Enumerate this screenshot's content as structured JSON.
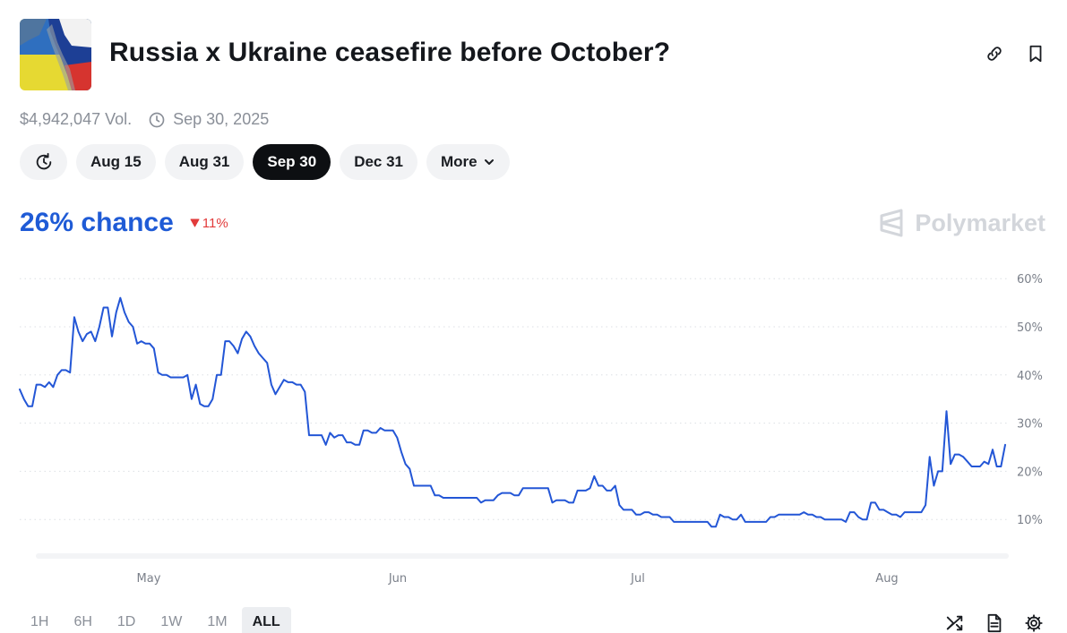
{
  "market": {
    "title": "Russia x Ukraine ceasefire before October?",
    "volume": "$4,942,047 Vol.",
    "end_date": "Sep 30, 2025"
  },
  "date_tabs": [
    {
      "label": "Aug 15",
      "active": false
    },
    {
      "label": "Aug 31",
      "active": false
    },
    {
      "label": "Sep 30",
      "active": true
    },
    {
      "label": "Dec 31",
      "active": false
    }
  ],
  "more_label": "More",
  "chance": {
    "value": "26% chance",
    "delta": "11%",
    "delta_direction": "down"
  },
  "brand": "Polymarket",
  "range_tabs": [
    {
      "label": "1H",
      "active": false
    },
    {
      "label": "6H",
      "active": false
    },
    {
      "label": "1D",
      "active": false
    },
    {
      "label": "1W",
      "active": false
    },
    {
      "label": "1M",
      "active": false
    },
    {
      "label": "ALL",
      "active": true
    }
  ],
  "colors": {
    "line": "#2356d6",
    "accent": "#1f5bd6",
    "down": "#e23b3b"
  },
  "icons": [
    "link-icon",
    "bookmark-icon",
    "clock-icon",
    "history-icon",
    "chevron-down-icon",
    "shuffle-icon",
    "document-icon",
    "gear-icon",
    "polymarket-logo-icon"
  ],
  "chart_data": {
    "type": "line",
    "x_start": "Apr 14",
    "x_ticks": [
      "May",
      "Jun",
      "Jul",
      "Aug"
    ],
    "y_ticks": [
      "10%",
      "20%",
      "30%",
      "40%",
      "50%",
      "60%"
    ],
    "ylim": [
      0,
      60
    ],
    "grid": true,
    "series": [
      {
        "values": [
          37,
          35,
          33.5,
          33.5,
          38,
          38,
          37.5,
          38.5,
          37.5,
          40,
          41,
          41,
          40.5,
          52,
          49,
          47,
          48.5,
          49,
          47,
          50,
          54,
          54,
          48,
          53,
          56,
          53,
          51,
          50,
          46.5,
          47,
          46.5,
          46.5,
          45.5,
          40.5,
          40,
          40,
          39.5,
          39.5,
          39.5,
          39.5,
          40,
          35,
          38,
          34,
          33.5,
          33.5,
          35,
          40,
          40,
          47,
          47,
          46,
          44.5,
          47.5,
          49,
          48,
          46,
          44.5,
          43.5,
          42.5,
          38,
          36,
          37.5,
          39,
          38.5,
          38.5,
          38,
          38,
          36.5,
          27.5,
          27.5,
          27.5,
          27.5,
          25.5,
          28,
          27,
          27.5,
          27.5,
          26,
          26,
          25.5,
          25.5,
          28.5,
          28.5,
          28,
          28,
          29,
          28.5,
          28.5,
          28.5,
          27,
          24,
          21.5,
          20.5,
          17,
          17,
          17,
          17,
          17,
          15,
          15,
          14.5,
          14.5,
          14.5,
          14.5,
          14.5,
          14.5,
          14.5,
          14.5,
          14.5,
          13.5,
          14,
          14,
          14,
          15,
          15.5,
          15.5,
          15.5,
          15,
          15,
          16.5,
          16.5,
          16.5,
          16.5,
          16.5,
          16.5,
          16.5,
          13.5,
          14,
          14,
          14,
          13.5,
          13.5,
          16,
          16,
          16,
          16.5,
          19,
          17,
          17,
          16,
          16,
          17,
          13,
          12,
          12,
          12,
          11,
          11,
          11.5,
          11.5,
          11,
          11,
          10.5,
          10.5,
          10.5,
          9.5,
          9.5,
          9.5,
          9.5,
          9.5,
          9.5,
          9.5,
          9.5,
          9.5,
          8.5,
          8.5,
          11,
          10.5,
          10.5,
          10,
          10,
          11,
          9.5,
          9.5,
          9.5,
          9.5,
          9.5,
          9.5,
          10.5,
          10.5,
          11,
          11,
          11,
          11,
          11,
          11,
          11.5,
          11,
          11,
          10.5,
          10.5,
          10,
          10,
          10,
          10,
          10,
          9.5,
          11.5,
          11.5,
          10.5,
          10,
          10,
          13.5,
          13.5,
          12,
          12,
          11.5,
          11,
          11,
          10.5,
          11.5,
          11.5,
          11.5,
          11.5,
          11.5,
          13,
          23,
          17,
          20,
          20,
          32.5,
          21.5,
          23.5,
          23.5,
          23,
          22,
          21,
          21,
          21,
          22,
          21.5,
          24.5,
          21,
          21,
          25.5
        ]
      }
    ]
  }
}
